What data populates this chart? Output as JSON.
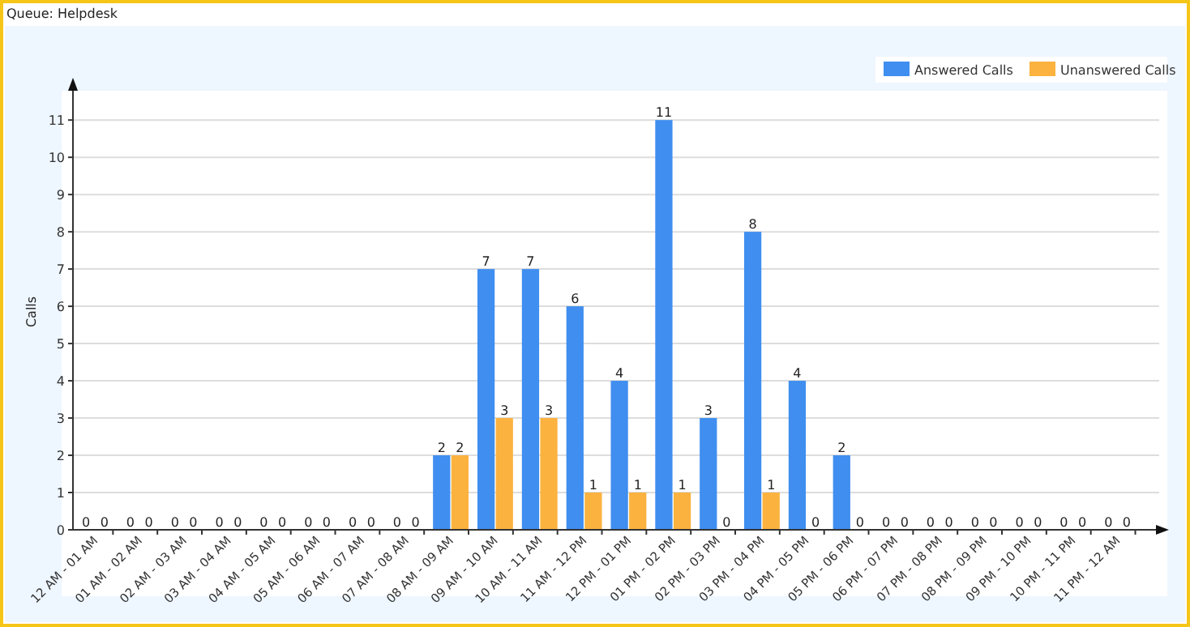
{
  "chart_data": {
    "type": "bar",
    "title": "Queue: Helpdesk",
    "ylabel": "Calls",
    "categories": [
      "12 AM - 01 AM",
      "01 AM - 02 AM",
      "02 AM - 03 AM",
      "03 AM - 04 AM",
      "04 AM - 05 AM",
      "05 AM - 06 AM",
      "06 AM - 07 AM",
      "07 AM - 08 AM",
      "08 AM - 09 AM",
      "09 AM - 10 AM",
      "10 AM - 11 AM",
      "11 AM - 12 PM",
      "12 PM - 01 PM",
      "01 PM - 02 PM",
      "02 PM - 03 PM",
      "03 PM - 04 PM",
      "04 PM - 05 PM",
      "05 PM - 06 PM",
      "06 PM - 07 PM",
      "07 PM - 08 PM",
      "08 PM - 09 PM",
      "09 PM - 10 PM",
      "10 PM - 11 PM",
      "11 PM - 12 AM"
    ],
    "series": [
      {
        "name": "Answered Calls",
        "color": "#3f8ef0",
        "values": [
          0,
          0,
          0,
          0,
          0,
          0,
          0,
          0,
          2,
          7,
          7,
          6,
          4,
          11,
          3,
          8,
          4,
          2,
          0,
          0,
          0,
          0,
          0,
          0
        ]
      },
      {
        "name": "Unanswered Calls",
        "color": "#fbb23f",
        "values": [
          0,
          0,
          0,
          0,
          0,
          0,
          0,
          0,
          2,
          3,
          3,
          1,
          1,
          1,
          0,
          1,
          0,
          0,
          0,
          0,
          0,
          0,
          0,
          0
        ]
      }
    ],
    "ylim": [
      0,
      11.7
    ],
    "yticks": [
      0,
      1,
      2,
      3,
      4,
      5,
      6,
      7,
      8,
      9,
      10,
      11
    ],
    "grid": "y",
    "legend": "top right",
    "data_labels": true
  }
}
